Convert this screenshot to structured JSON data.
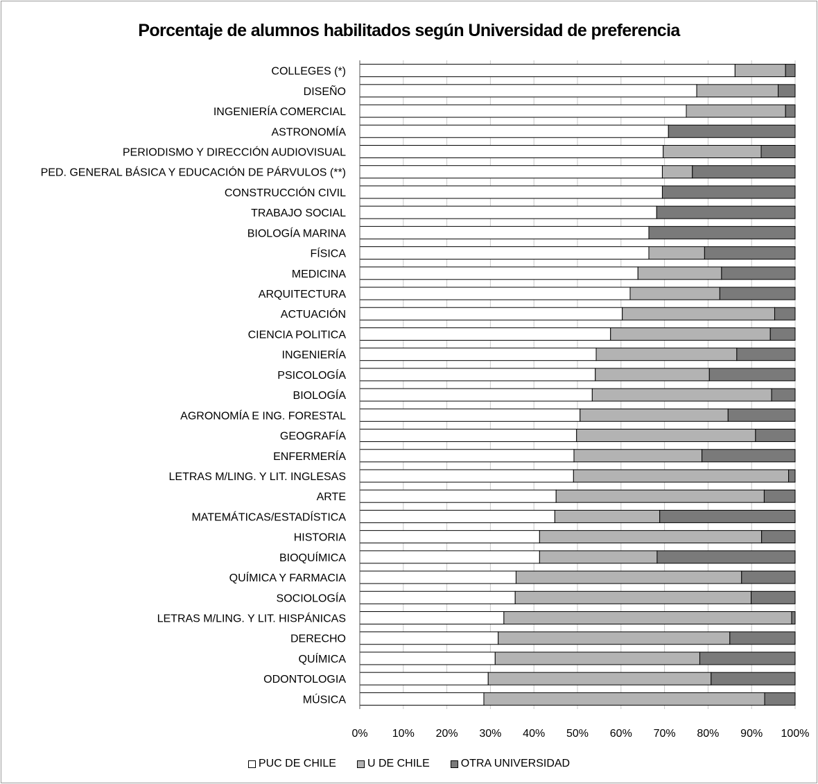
{
  "chart_data": {
    "type": "bar",
    "orientation": "horizontal",
    "stacked": true,
    "title": "Porcentaje de alumnos habilitados según Universidad de preferencia",
    "categories": [
      "COLLEGES (*)",
      "DISEÑO",
      "INGENIERÍA COMERCIAL",
      "ASTRONOMÍA",
      "PERIODISMO Y DIRECCIÓN AUDIOVISUAL",
      "PED. GENERAL BÁSICA Y EDUCACIÓN DE PÁRVULOS (**)",
      "CONSTRUCCIÓN CIVIL",
      "TRABAJO SOCIAL",
      "BIOLOGÍA MARINA",
      "FÍSICA",
      "MEDICINA",
      "ARQUITECTURA",
      "ACTUACIÓN",
      "CIENCIA POLITICA",
      "INGENIERÍA",
      "PSICOLOGÍA",
      "BIOLOGÍA",
      "AGRONOMÍA E ING. FORESTAL",
      "GEOGRAFÍA",
      "ENFERMERÍA",
      "LETRAS M/LING. Y LIT. INGLESAS",
      "ARTE",
      "MATEMÁTICAS/ESTADÍSTICA",
      "HISTORIA",
      "BIOQUÍMICA",
      "QUÍMICA Y FARMACIA",
      "SOCIOLOGÍA",
      "LETRAS M/LING. Y LIT. HISPÁNICAS",
      "DERECHO",
      "QUÍMICA",
      "ODONTOLOGIA",
      "MÚSICA"
    ],
    "series": [
      {
        "name": "PUC DE CHILE",
        "color": "#ffffff",
        "values": [
          86.2,
          77.4,
          75,
          70.9,
          69.7,
          69.5,
          69.5,
          68.2,
          66.4,
          66.4,
          63.9,
          62.1,
          60.3,
          57.6,
          54.3,
          54.1,
          53.4,
          50.6,
          49.8,
          49.2,
          49.1,
          45.1,
          44.8,
          41.3,
          41.3,
          35.9,
          35.7,
          33.1,
          31.8,
          31.1,
          29.5,
          28.5
        ]
      },
      {
        "name": "U DE CHILE",
        "color": "#b3b3b3",
        "values": [
          11.6,
          18.7,
          22.8,
          0,
          22.5,
          6.9,
          0,
          0,
          0,
          12.8,
          19.2,
          20.6,
          35,
          36.7,
          32.3,
          26.2,
          41.2,
          34,
          41.1,
          29.4,
          49.4,
          47.8,
          24.1,
          51,
          27,
          51.8,
          54.2,
          66.1,
          53.2,
          47,
          51.2,
          64.5
        ]
      },
      {
        "name": "OTRA UNIVERSIDAD",
        "color": "#7a7a7a",
        "values": [
          2.2,
          3.9,
          2.2,
          29.1,
          7.8,
          23.6,
          30.5,
          31.8,
          33.6,
          20.8,
          16.9,
          17.3,
          4.7,
          5.7,
          13.4,
          19.7,
          5.4,
          15.4,
          9.1,
          21.4,
          1.5,
          7.1,
          31.1,
          7.7,
          31.7,
          12.3,
          10.1,
          0.8,
          15,
          21.9,
          19.3,
          7
        ]
      }
    ],
    "xlim": [
      0,
      100
    ],
    "x_tick_labels": [
      "0%",
      "10%",
      "20%",
      "30%",
      "40%",
      "50%",
      "60%",
      "70%",
      "80%",
      "90%",
      "100%"
    ],
    "grid": true,
    "legend_position": "bottom"
  }
}
